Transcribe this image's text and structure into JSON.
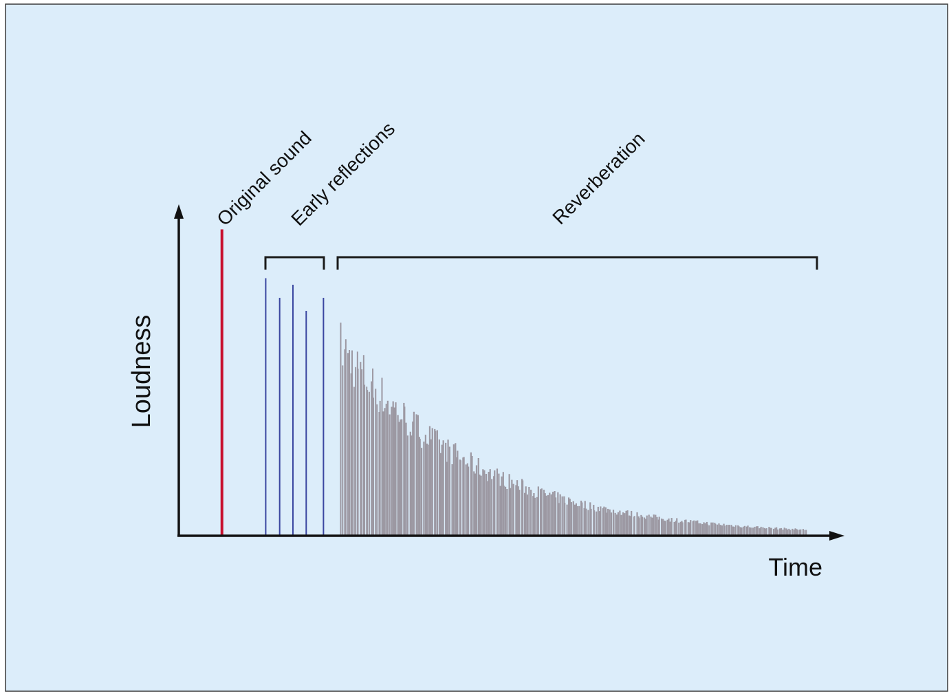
{
  "diagram": {
    "y_axis_label": "Loudness",
    "x_axis_label": "Time",
    "regions": {
      "original": "Original sound",
      "early": "Early reflections",
      "reverb": "Reverberation"
    }
  },
  "chart_data": {
    "type": "bar",
    "series": [
      {
        "name": "Original sound",
        "color": "#c8102e",
        "x": [
          0.065
        ],
        "values": [
          0.94
        ]
      },
      {
        "name": "Early reflections",
        "color": "#3a46a0",
        "x": [
          0.131,
          0.152,
          0.172,
          0.192,
          0.218
        ],
        "values": [
          0.79,
          0.73,
          0.77,
          0.69,
          0.73
        ]
      },
      {
        "name": "Reverberation",
        "color": "#9c98a2",
        "decay": {
          "x_start": 0.245,
          "x_end": 0.945,
          "value_start": 0.63,
          "value_end": 0.02
        }
      }
    ],
    "colors": {
      "background": "#dcedfa",
      "axis": "#111111",
      "bracket": "#1a1a1a"
    }
  }
}
